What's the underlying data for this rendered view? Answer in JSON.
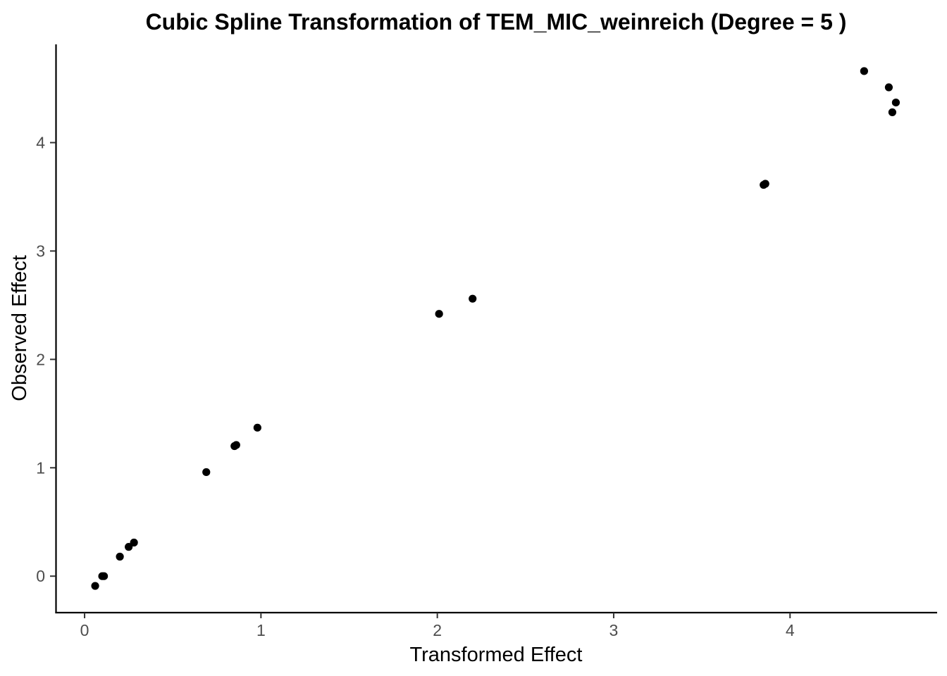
{
  "chart_data": {
    "type": "scatter",
    "title": "Cubic Spline Transformation of TEM_MIC_weinreich (Degree = 5 )",
    "xlabel": "Transformed Effect",
    "ylabel": "Observed Effect",
    "xlim": [
      -0.16,
      4.83
    ],
    "ylim": [
      -0.33,
      4.9
    ],
    "xticks": [
      0,
      1,
      2,
      3,
      4
    ],
    "yticks": [
      0,
      1,
      2,
      3,
      4
    ],
    "grid": false,
    "legend": "none",
    "point_color": "#000000",
    "points": [
      {
        "x": 0.06,
        "y": -0.09
      },
      {
        "x": 0.1,
        "y": 0.0
      },
      {
        "x": 0.11,
        "y": 0.0
      },
      {
        "x": 0.2,
        "y": 0.18
      },
      {
        "x": 0.25,
        "y": 0.27
      },
      {
        "x": 0.28,
        "y": 0.31
      },
      {
        "x": 0.69,
        "y": 0.96
      },
      {
        "x": 0.85,
        "y": 1.2
      },
      {
        "x": 0.86,
        "y": 1.21
      },
      {
        "x": 0.98,
        "y": 1.37
      },
      {
        "x": 2.01,
        "y": 2.42
      },
      {
        "x": 2.2,
        "y": 2.56
      },
      {
        "x": 3.85,
        "y": 3.61
      },
      {
        "x": 3.86,
        "y": 3.62
      },
      {
        "x": 4.42,
        "y": 4.66
      },
      {
        "x": 4.56,
        "y": 4.51
      },
      {
        "x": 4.58,
        "y": 4.28
      },
      {
        "x": 4.6,
        "y": 4.37
      }
    ]
  }
}
